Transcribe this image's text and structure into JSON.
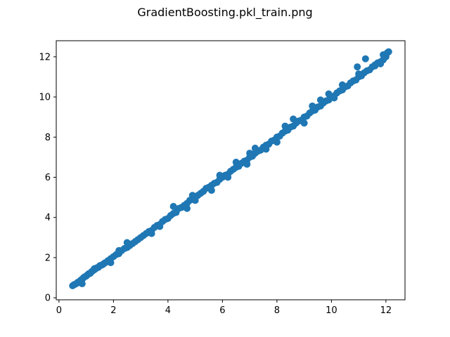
{
  "chart_data": {
    "type": "scatter",
    "title": "GradientBoosting.pkl_train.png",
    "xlabel": "",
    "ylabel": "",
    "xlim": [
      -0.1,
      12.7
    ],
    "ylim": [
      -0.1,
      12.8
    ],
    "x_ticks": [
      0,
      2,
      4,
      6,
      8,
      10,
      12
    ],
    "y_ticks": [
      0,
      2,
      4,
      6,
      8,
      10,
      12
    ],
    "grid": false,
    "series": [
      {
        "color": "#1f77b4",
        "x": [
          0.5,
          0.55,
          0.6,
          0.65,
          0.7,
          0.75,
          0.8,
          0.85,
          0.9,
          0.95,
          1.0,
          1.05,
          1.1,
          1.15,
          1.2,
          1.25,
          1.3,
          1.35,
          1.4,
          1.45,
          1.5,
          1.55,
          1.6,
          1.65,
          1.7,
          1.8,
          1.9,
          2.0,
          2.1,
          2.2,
          2.3,
          2.4,
          2.5,
          2.6,
          2.7,
          2.8,
          2.9,
          3.0,
          3.1,
          3.2,
          3.3,
          3.4,
          3.5,
          3.6,
          3.7,
          3.8,
          3.9,
          4.0,
          4.1,
          4.2,
          4.3,
          4.4,
          4.5,
          4.6,
          4.7,
          4.8,
          4.9,
          5.0,
          5.1,
          5.2,
          5.3,
          5.4,
          5.5,
          5.6,
          5.7,
          5.8,
          5.9,
          6.0,
          6.1,
          6.2,
          6.3,
          6.4,
          6.5,
          6.6,
          6.7,
          6.8,
          6.9,
          7.0,
          7.1,
          7.2,
          7.3,
          7.4,
          7.5,
          7.6,
          7.7,
          7.8,
          7.9,
          8.0,
          8.1,
          8.2,
          8.3,
          8.4,
          8.5,
          8.6,
          8.7,
          8.8,
          8.9,
          9.0,
          9.1,
          9.2,
          9.3,
          9.4,
          9.5,
          9.6,
          9.7,
          9.8,
          9.9,
          10.0,
          10.1,
          10.2,
          10.3,
          10.4,
          10.5,
          10.6,
          10.7,
          10.8,
          10.9,
          11.0,
          11.1,
          11.2,
          11.3,
          11.4,
          11.5,
          11.6,
          11.7,
          11.8,
          11.9,
          12.0,
          12.1,
          11.9,
          11.6,
          11.8,
          12.05,
          10.95,
          11.25,
          4.2,
          4.7,
          5.6,
          6.5,
          6.9,
          7.2,
          8.6,
          9.0,
          9.6,
          3.4,
          2.5,
          1.9,
          1.3,
          0.85,
          5.9,
          7.6,
          8.3,
          10.1,
          9.3,
          6.2,
          4.9,
          3.7,
          2.2,
          5.0,
          7.0,
          8.0,
          9.9,
          10.4,
          11.0
        ],
        "y": [
          0.6,
          0.65,
          0.68,
          0.72,
          0.78,
          0.8,
          0.88,
          0.92,
          1.0,
          1.05,
          1.08,
          1.15,
          1.2,
          1.22,
          1.3,
          1.35,
          1.4,
          1.45,
          1.5,
          1.52,
          1.6,
          1.62,
          1.65,
          1.7,
          1.75,
          1.85,
          1.95,
          2.05,
          2.15,
          2.2,
          2.35,
          2.45,
          2.5,
          2.6,
          2.7,
          2.8,
          2.9,
          3.0,
          3.1,
          3.2,
          3.3,
          3.35,
          3.5,
          3.6,
          3.65,
          3.8,
          3.9,
          3.95,
          4.1,
          4.2,
          4.25,
          4.45,
          4.5,
          4.6,
          4.7,
          4.85,
          4.9,
          5.0,
          5.1,
          5.2,
          5.3,
          5.45,
          5.5,
          5.6,
          5.7,
          5.75,
          5.9,
          6.0,
          6.1,
          6.15,
          6.3,
          6.4,
          6.5,
          6.55,
          6.7,
          6.8,
          6.85,
          7.0,
          7.05,
          7.2,
          7.3,
          7.35,
          7.5,
          7.6,
          7.65,
          7.8,
          7.85,
          8.0,
          8.05,
          8.2,
          8.3,
          8.35,
          8.5,
          8.55,
          8.7,
          8.8,
          8.85,
          9.0,
          9.05,
          9.2,
          9.3,
          9.35,
          9.5,
          9.55,
          9.7,
          9.8,
          9.85,
          10.0,
          10.05,
          10.2,
          10.3,
          10.35,
          10.5,
          10.55,
          10.7,
          10.8,
          10.85,
          11.0,
          11.05,
          11.2,
          11.3,
          11.35,
          11.5,
          11.55,
          11.7,
          11.75,
          11.85,
          12.0,
          12.25,
          12.1,
          11.6,
          11.65,
          12.2,
          11.5,
          11.9,
          4.55,
          4.45,
          5.35,
          6.75,
          6.65,
          7.45,
          8.9,
          8.7,
          9.85,
          3.2,
          2.75,
          1.75,
          1.45,
          0.7,
          6.1,
          7.4,
          8.55,
          9.95,
          9.55,
          6.0,
          5.1,
          3.55,
          2.35,
          4.85,
          7.2,
          7.75,
          10.15,
          10.6,
          11.15
        ]
      }
    ]
  }
}
